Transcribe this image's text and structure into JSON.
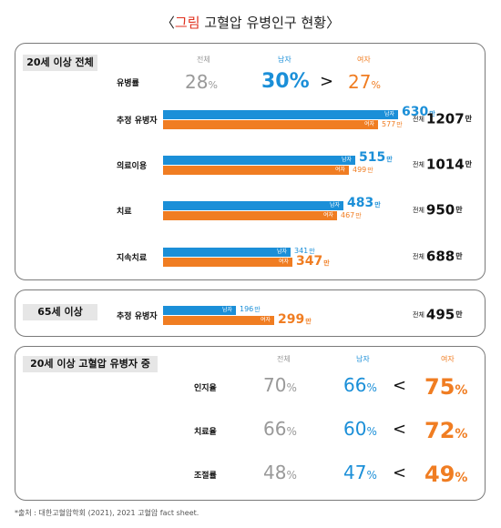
{
  "title": {
    "open": "〈",
    "accent": "그림",
    "rest": "고혈압 유병인구 현황",
    "close": "〉"
  },
  "labels": {
    "total": "전체",
    "male": "남자",
    "female": "여자",
    "man": "만",
    "gt": ">",
    "lt": "<",
    "pct_sign": "%"
  },
  "colors": {
    "male": "#1b8fd8",
    "female": "#f07d22",
    "gray": "#999999",
    "accent": "#e0311f"
  },
  "chart_data": [
    {
      "type": "bar",
      "group": "20세 이상 전체",
      "prevalence": {
        "label": "유병률",
        "total": 28,
        "male": 30,
        "female": 27,
        "compare": ">"
      },
      "categories": [
        "추정 유병자",
        "의료이용",
        "치료",
        "지속치료"
      ],
      "series": [
        {
          "name": "남자",
          "values": [
            630,
            515,
            483,
            341
          ]
        },
        {
          "name": "여자",
          "values": [
            577,
            499,
            467,
            347
          ]
        }
      ],
      "totals": [
        1207,
        1014,
        950,
        688
      ],
      "unit": "만"
    },
    {
      "type": "bar",
      "group": "65세 이상",
      "categories": [
        "추정 유병자"
      ],
      "series": [
        {
          "name": "남자",
          "values": [
            196
          ]
        },
        {
          "name": "여자",
          "values": [
            299
          ]
        }
      ],
      "totals": [
        495
      ],
      "unit": "만"
    },
    {
      "type": "table",
      "group": "20세 이상 고혈압 유병자 중",
      "columns": [
        "전체",
        "남자",
        "여자"
      ],
      "rows": [
        {
          "label": "인지율",
          "total": 70,
          "male": 66,
          "female": 75,
          "compare": "<"
        },
        {
          "label": "치료율",
          "total": 66,
          "male": 60,
          "female": 72,
          "compare": "<"
        },
        {
          "label": "조절률",
          "total": 48,
          "male": 47,
          "female": 49,
          "compare": "<"
        }
      ]
    }
  ],
  "source": "*출처 : 대한고혈압학회 (2021), 2021 고혈압 fact sheet."
}
